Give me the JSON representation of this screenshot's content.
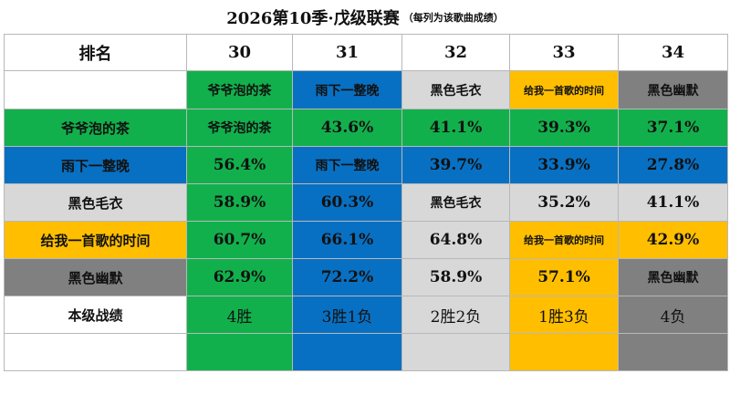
{
  "title": "2026第10季·戊级联赛",
  "subtitle": "（每列为该歌曲成绩）",
  "table": {
    "header": [
      "排名",
      "30",
      "31",
      "32",
      "33",
      "34"
    ],
    "songs": [
      "爷爷泡的茶",
      "雨下一整晚",
      "黑色毛衣",
      "给我一首歌的时间",
      "黑色幽默"
    ],
    "rows": [
      [
        "爷爷泡的茶",
        "爷爷泡的茶",
        "43.6%",
        "41.1%",
        "39.3%",
        "37.1%"
      ],
      [
        "雨下一整晚",
        "56.4%",
        "雨下一整晚",
        "39.7%",
        "33.9%",
        "27.8%"
      ],
      [
        "黑色毛衣",
        "58.9%",
        "60.3%",
        "黑色毛衣",
        "35.2%",
        "41.1%"
      ],
      [
        "给我一首歌的时间",
        "60.7%",
        "66.1%",
        "64.8%",
        "给我一首歌的时间",
        "42.9%"
      ],
      [
        "黑色幽默",
        "62.9%",
        "72.2%",
        "58.9%",
        "57.1%",
        "黑色幽默"
      ],
      [
        "本级战绩",
        "4胜",
        "3胜1负",
        "2胜2负",
        "1胜3负",
        "4负"
      ]
    ]
  }
}
